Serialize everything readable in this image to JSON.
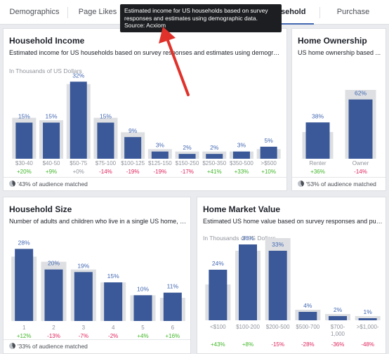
{
  "tabs": [
    "Demographics",
    "Page Likes",
    "",
    "",
    "",
    "ousehold",
    "Purchase"
  ],
  "tooltip": {
    "text": "Estimated income for US households based on survey responses and estimates using demographic data.",
    "source": "Source: Acxiom"
  },
  "cards": {
    "household_income": {
      "title": "Household Income",
      "subtitle": "Estimated income for US households based on survey responses and estimates using demographi...",
      "units": "In Thousands of US Dollars",
      "footer": "'43% of audience matched"
    },
    "home_ownership": {
      "title": "Home Ownership",
      "subtitle": "US home ownership based ...",
      "footer": "'53% of audience matched"
    },
    "household_size": {
      "title": "Household Size",
      "subtitle": "Number of adults and children who live in a single US home, bas...",
      "footer": "'33% of audience matched"
    },
    "home_market_value": {
      "title": "Home Market Value",
      "subtitle": "Estimated US home value based on survey responses and publi...",
      "units": "In Thousands of US Dollars"
    }
  },
  "colors": {
    "bar": "#3b5998",
    "bar_bg": "#dddfe2",
    "pct": "#4267b2",
    "pos": "#42b72a",
    "neg": "#e0245e",
    "neutral": "#90949c"
  },
  "chart_data": [
    {
      "type": "bar",
      "title": "Household Income",
      "categories": [
        "$30-40",
        "$40-50",
        "$50-75",
        "$75-100",
        "$100-125",
        "$125-150",
        "$150-250",
        "$250-350",
        "$350-500",
        ">$500"
      ],
      "series": [
        {
          "values": [
            15,
            15,
            32,
            15,
            9,
            3,
            2,
            2,
            3,
            5
          ]
        }
      ],
      "labels": [
        "15%",
        "15%",
        "32%",
        "15%",
        "9%",
        "3%",
        "2%",
        "2%",
        "3%",
        "5%"
      ],
      "baseline": [
        17,
        16,
        31,
        17,
        11,
        4,
        3,
        3,
        3,
        4
      ],
      "diffs": [
        "+20%",
        "+9%",
        "+0%",
        "-14%",
        "-19%",
        "-19%",
        "-17%",
        "+41%",
        "+33%",
        "+10%"
      ]
    },
    {
      "type": "bar",
      "title": "Home Ownership",
      "categories": [
        "Renter",
        "Owner"
      ],
      "series": [
        {
          "values": [
            38,
            62
          ]
        }
      ],
      "labels": [
        "38%",
        "62%"
      ],
      "baseline": [
        28,
        72
      ],
      "diffs": [
        "+36%",
        "-14%"
      ]
    },
    {
      "type": "bar",
      "title": "Household Size",
      "categories": [
        "1",
        "2",
        "3",
        "4",
        "5",
        "6"
      ],
      "series": [
        {
          "values": [
            28,
            20,
            19,
            15,
            10,
            11
          ]
        }
      ],
      "labels": [
        "28%",
        "20%",
        "19%",
        "15%",
        "10%",
        "11%"
      ],
      "baseline": [
        25,
        23,
        20,
        15,
        10,
        9
      ],
      "diffs": [
        "+12%",
        "-13%",
        "-7%",
        "-2%",
        "+4%",
        "+16%"
      ]
    },
    {
      "type": "bar",
      "title": "Home Market Value",
      "categories": [
        "<$100",
        "$100-200",
        "$200-500",
        "$500-700",
        "$700-1,000",
        ">$1,000"
      ],
      "series": [
        {
          "values": [
            24,
            36,
            33,
            4,
            2,
            1
          ]
        }
      ],
      "labels": [
        "24%",
        "36%",
        "33%",
        "4%",
        "2%",
        "1%"
      ],
      "baseline": [
        17,
        33,
        39,
        5,
        3,
        2
      ],
      "diffs": [
        "+43%",
        "+8%",
        "-15%",
        "-28%",
        "-36%",
        "-48%"
      ]
    }
  ]
}
